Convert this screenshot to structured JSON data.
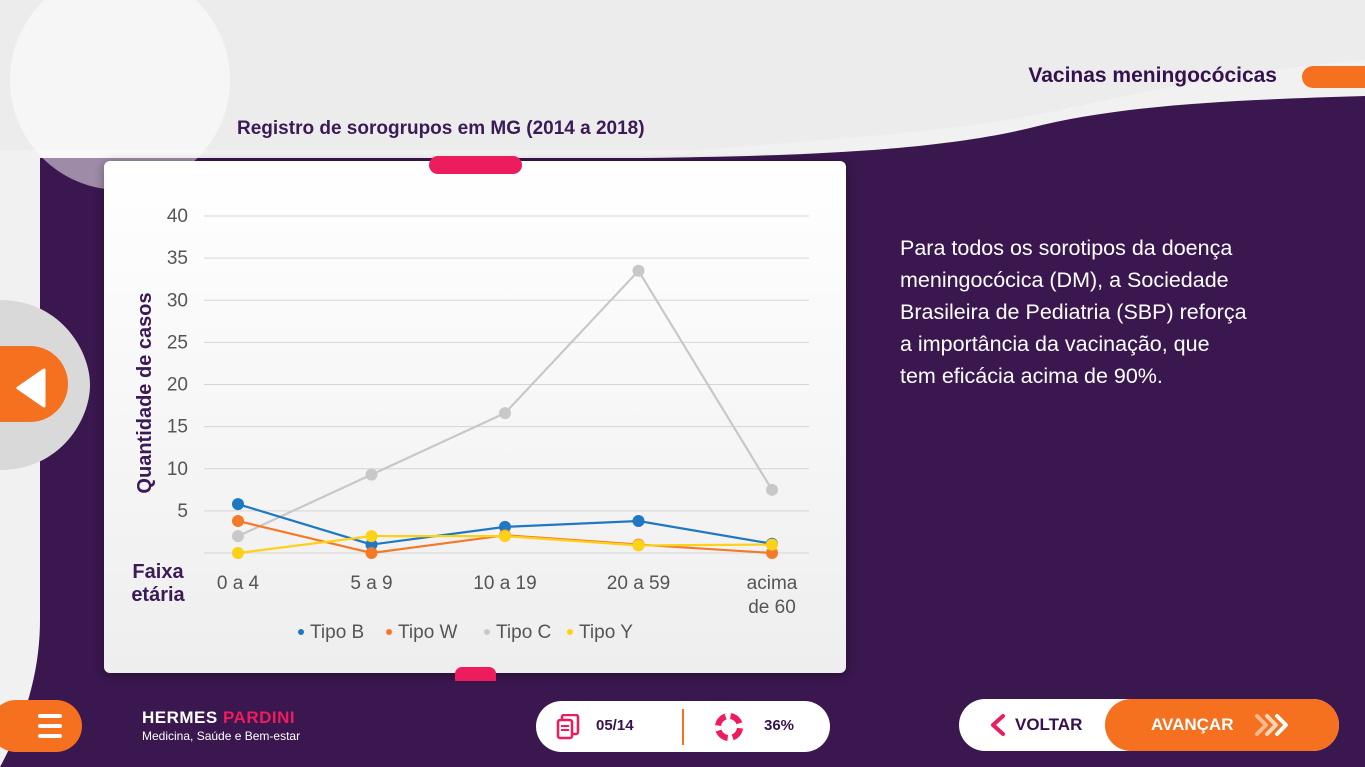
{
  "header": {
    "module_title": "Vacinas meningocócicas"
  },
  "info": {
    "lines": [
      "Para todos os sorotipos da doença",
      "meningocócica (DM), a Sociedade",
      "Brasileira de Pediatria (SBP) reforça",
      "a importância da vacinação, que",
      "tem eficácia acima de 90%."
    ]
  },
  "brand": {
    "name_part1": "HERMES ",
    "name_part2": "PARDINI",
    "tagline": "Medicina, Saúde e Bem-estar"
  },
  "progress": {
    "page": "05/14",
    "percent": "36%"
  },
  "nav": {
    "back_label": "VOLTAR",
    "next_label": "AVANÇAR"
  },
  "colors": {
    "purple": "#3a174f",
    "orange": "#f5701f",
    "pink": "#ed1c5c"
  },
  "icons": {
    "back": "chevron-left-icon",
    "menu": "hamburger-icon",
    "pages": "document-icon",
    "progress": "lifebuoy-icon",
    "next": "double-chevron-right-icon"
  },
  "chart_data": {
    "type": "line",
    "title": "Registro de sorogrupos em MG (2014 a 2018)",
    "ylabel": "Quantidade de casos",
    "xlabel": "Faixa etária",
    "xlabel_lines": [
      "Faixa",
      "etária"
    ],
    "categories": [
      [
        "0 a 4"
      ],
      [
        "5 a 9"
      ],
      [
        "10 a 19"
      ],
      [
        "20 a 59"
      ],
      [
        "acima",
        "de 60"
      ]
    ],
    "ylim": [
      0,
      40
    ],
    "yticks": [
      5,
      10,
      15,
      20,
      25,
      30,
      35,
      40
    ],
    "grid": true,
    "legend_position": "bottom",
    "series": [
      {
        "name": "Tipo B",
        "color": "#1f78c1",
        "values": [
          5.8,
          1,
          3.1,
          3.8,
          1.1
        ]
      },
      {
        "name": "Tipo W",
        "color": "#f47a2a",
        "values": [
          3.8,
          0,
          2.1,
          1,
          0
        ]
      },
      {
        "name": "Tipo C",
        "color": "#c8c8c8",
        "values": [
          2,
          9.3,
          16.6,
          33.5,
          7.5
        ]
      },
      {
        "name": "Tipo Y",
        "color": "#fcd116",
        "values": [
          0,
          2,
          2,
          0.9,
          1
        ]
      }
    ]
  }
}
